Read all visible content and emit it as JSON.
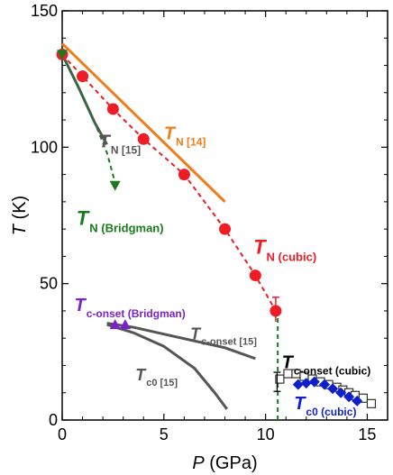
{
  "chart_data": {
    "type": "scatter",
    "xlabel": {
      "var": "P",
      "unit": " (GPa)"
    },
    "ylabel": {
      "var": "T",
      "unit": " (K)"
    },
    "xlim": [
      0,
      16
    ],
    "ylim": [
      0,
      150
    ],
    "xticks": [
      0,
      5,
      10,
      15
    ],
    "yticks": [
      0,
      50,
      100,
      150
    ],
    "grid": false,
    "colors": {
      "red": "#ee1c25",
      "orange": "#ef7d1b",
      "green": "#1a7a1e",
      "gray": "#555555",
      "blue": "#0e1fcc",
      "purple": "#7a22cc"
    },
    "series": [
      {
        "key": "tn_cubic_points",
        "marker": "circle",
        "color": "#ee1c25",
        "x": [
          0,
          1,
          2.5,
          4,
          6,
          8,
          9.5,
          10.5
        ],
        "y": [
          134,
          126,
          114,
          103,
          90,
          70,
          53,
          40
        ],
        "error_last": [
          36,
          45
        ]
      },
      {
        "key": "tn_cubic_fit",
        "style": "dashed",
        "color": "#ee1c25",
        "x": [
          0,
          1,
          2.5,
          4,
          6,
          8,
          9.5,
          10.5
        ],
        "y": [
          134,
          126,
          114,
          103,
          90,
          70,
          53,
          40
        ]
      },
      {
        "key": "tn_ref14",
        "style": "solid",
        "color": "#ef7d1b",
        "x": [
          0,
          8
        ],
        "y": [
          138,
          80
        ]
      },
      {
        "key": "tn_ref15",
        "style": "solid",
        "color": "#555555",
        "x": [
          0,
          0.8,
          1.6,
          2.2
        ],
        "y": [
          134,
          122,
          109,
          101
        ]
      },
      {
        "key": "tn_ref15_ext",
        "style": "dashed",
        "color": "#1a7a1e",
        "x": [
          0,
          0.8,
          1.6,
          2.2,
          2.6
        ],
        "y": [
          134,
          122,
          109,
          98,
          87
        ]
      },
      {
        "key": "tn_bridgman_points",
        "marker": "triangle-down",
        "color": "#1a7a1e",
        "x": [
          0,
          2.6
        ],
        "y": [
          134,
          86
        ]
      },
      {
        "key": "tc_onset_ref15",
        "style": "solid",
        "color": "#555555",
        "x": [
          2.2,
          3.5,
          5,
          6.5,
          8,
          9.5
        ],
        "y": [
          35.5,
          34,
          31.5,
          29,
          26.5,
          22.5
        ]
      },
      {
        "key": "tc0_ref15",
        "style": "solid",
        "color": "#555555",
        "x": [
          2.2,
          3.5,
          5,
          6.5,
          7.5,
          8.1
        ],
        "y": [
          35,
          32,
          27,
          19,
          10,
          4
        ]
      },
      {
        "key": "tc_onset_bridgman_points",
        "marker": "triangle-up",
        "color": "#7a22cc",
        "x": [
          2.6,
          3.1
        ],
        "y": [
          35,
          35
        ]
      },
      {
        "key": "tc_onset_cubic_points",
        "marker": "square-open",
        "color": "#333333",
        "x": [
          10.7,
          11.1,
          11.5,
          11.9,
          12.3,
          12.7,
          13.1,
          13.5,
          13.8,
          14.1,
          14.4,
          14.8,
          15.2
        ],
        "y": [
          15,
          17,
          17,
          16,
          15,
          14,
          13,
          12,
          11,
          10,
          9,
          8,
          6
        ]
      },
      {
        "key": "tc0_cubic_points",
        "marker": "diamond",
        "color": "#0e1fcc",
        "x": [
          11.6,
          12.0,
          12.4,
          12.9,
          13.3,
          13.7,
          14.1,
          14.5
        ],
        "y": [
          13,
          13.5,
          14,
          13,
          11.5,
          10,
          8.5,
          7
        ]
      },
      {
        "key": "phase_boundary",
        "style": "dashed-vertical",
        "color": "#1a7a1e",
        "x": [
          10.6,
          10.6
        ],
        "y": [
          0,
          40
        ]
      }
    ],
    "annotations": [
      {
        "key": "tn_cubic",
        "main": "T",
        "sub": "N (cubic)",
        "color": "#ee1c25",
        "x": 9.4,
        "y": 61,
        "size": 22
      },
      {
        "key": "tn_14",
        "main": "T",
        "sub": "N [14]",
        "color": "#ef7d1b",
        "x": 5.0,
        "y": 103,
        "size": 20
      },
      {
        "key": "tn_15",
        "main": "T",
        "sub": "N [15]",
        "color": "#555555",
        "x": 1.8,
        "y": 100,
        "size": 20
      },
      {
        "key": "tn_bridgman",
        "main": "T",
        "sub": "N (Bridgman)",
        "color": "#1a7a1e",
        "x": 0.7,
        "y": 71.5,
        "size": 22
      },
      {
        "key": "tc_onset_bridgman",
        "main": "T",
        "sub": "c-onset (Bridgman)",
        "color": "#7a22cc",
        "x": 0.6,
        "y": 40,
        "size": 20
      },
      {
        "key": "tc_onset_15",
        "main": "T",
        "sub": "c-onset [15]",
        "color": "#555555",
        "x": 6.3,
        "y": 29.5,
        "size": 18
      },
      {
        "key": "tc0_15",
        "main": "T",
        "sub": "c0 [15]",
        "color": "#555555",
        "x": 3.6,
        "y": 14.5,
        "size": 18
      },
      {
        "key": "tc_onset_cubic",
        "main": "T",
        "sub": "c-onset (cubic)",
        "color": "#000000",
        "x": 10.8,
        "y": 19,
        "size": 20
      },
      {
        "key": "tc0_cubic",
        "main": "T",
        "sub": "c0 (cubic)",
        "color": "#0e1fcc",
        "x": 11.4,
        "y": 4,
        "size": 20
      }
    ]
  }
}
